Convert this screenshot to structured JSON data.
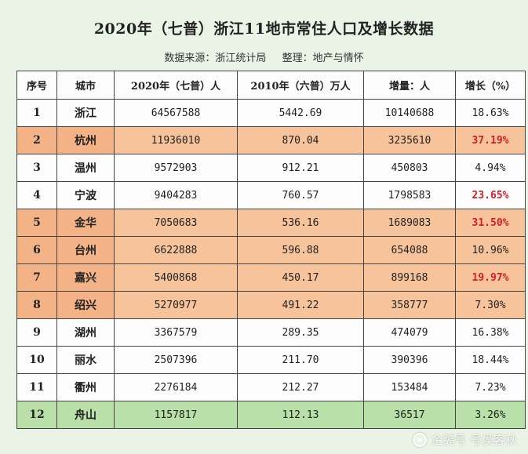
{
  "title": "2020年（七普）浙江11地市常住人口及增长数据",
  "source_label": "数据来源：浙江统计局",
  "editor_label": "整理：地产与情怀",
  "table": {
    "headers": [
      "序号",
      "城市",
      "2020年（七普）人",
      "2010年（六普）万人",
      "增量：人",
      "增长（%）"
    ],
    "rows": [
      {
        "seq": "1",
        "city": "浙江",
        "pop2020": "64567588",
        "pop2010": "5442.69",
        "increase": "10140688",
        "growth": "18.63%",
        "highlight": false,
        "red": false
      },
      {
        "seq": "2",
        "city": "杭州",
        "pop2020": "11936010",
        "pop2010": "870.04",
        "increase": "3235610",
        "growth": "37.19%",
        "highlight": true,
        "red": true
      },
      {
        "seq": "3",
        "city": "温州",
        "pop2020": "9572903",
        "pop2010": "912.21",
        "increase": "450803",
        "growth": "4.94%",
        "highlight": false,
        "red": false
      },
      {
        "seq": "4",
        "city": "宁波",
        "pop2020": "9404283",
        "pop2010": "760.57",
        "increase": "1798583",
        "growth": "23.65%",
        "highlight": false,
        "red": true
      },
      {
        "seq": "5",
        "city": "金华",
        "pop2020": "7050683",
        "pop2010": "536.16",
        "increase": "1689083",
        "growth": "31.50%",
        "highlight": true,
        "red": true
      },
      {
        "seq": "6",
        "city": "台州",
        "pop2020": "6622888",
        "pop2010": "596.88",
        "increase": "654088",
        "growth": "10.96%",
        "highlight": true,
        "red": false
      },
      {
        "seq": "7",
        "city": "嘉兴",
        "pop2020": "5400868",
        "pop2010": "450.17",
        "increase": "899168",
        "growth": "19.97%",
        "highlight": true,
        "red": true
      },
      {
        "seq": "8",
        "city": "绍兴",
        "pop2020": "5270977",
        "pop2010": "491.22",
        "increase": "358777",
        "growth": "7.30%",
        "highlight": true,
        "red": false
      },
      {
        "seq": "9",
        "city": "湖州",
        "pop2020": "3367579",
        "pop2010": "289.35",
        "increase": "474079",
        "growth": "16.38%",
        "highlight": false,
        "red": false
      },
      {
        "seq": "10",
        "city": "丽水",
        "pop2020": "2507396",
        "pop2010": "211.70",
        "increase": "390396",
        "growth": "18.44%",
        "highlight": false,
        "red": false
      },
      {
        "seq": "11",
        "city": "衢州",
        "pop2020": "2276184",
        "pop2010": "212.27",
        "increase": "153484",
        "growth": "7.23%",
        "highlight": false,
        "red": false
      },
      {
        "seq": "12",
        "city": "舟山",
        "pop2020": "1157817",
        "pop2010": "112.13",
        "increase": "36517",
        "growth": "3.26%",
        "highlight": false,
        "red": false,
        "last": true
      }
    ]
  },
  "watermark": {
    "text": "企鹅号 号侯客秋",
    "icon": "penguin-logo-icon"
  },
  "colors": {
    "background": "#eaf4e6",
    "highlight_row": "#f6c39b",
    "last_row": "#b9e0a8",
    "red_text": "#d0202b"
  }
}
